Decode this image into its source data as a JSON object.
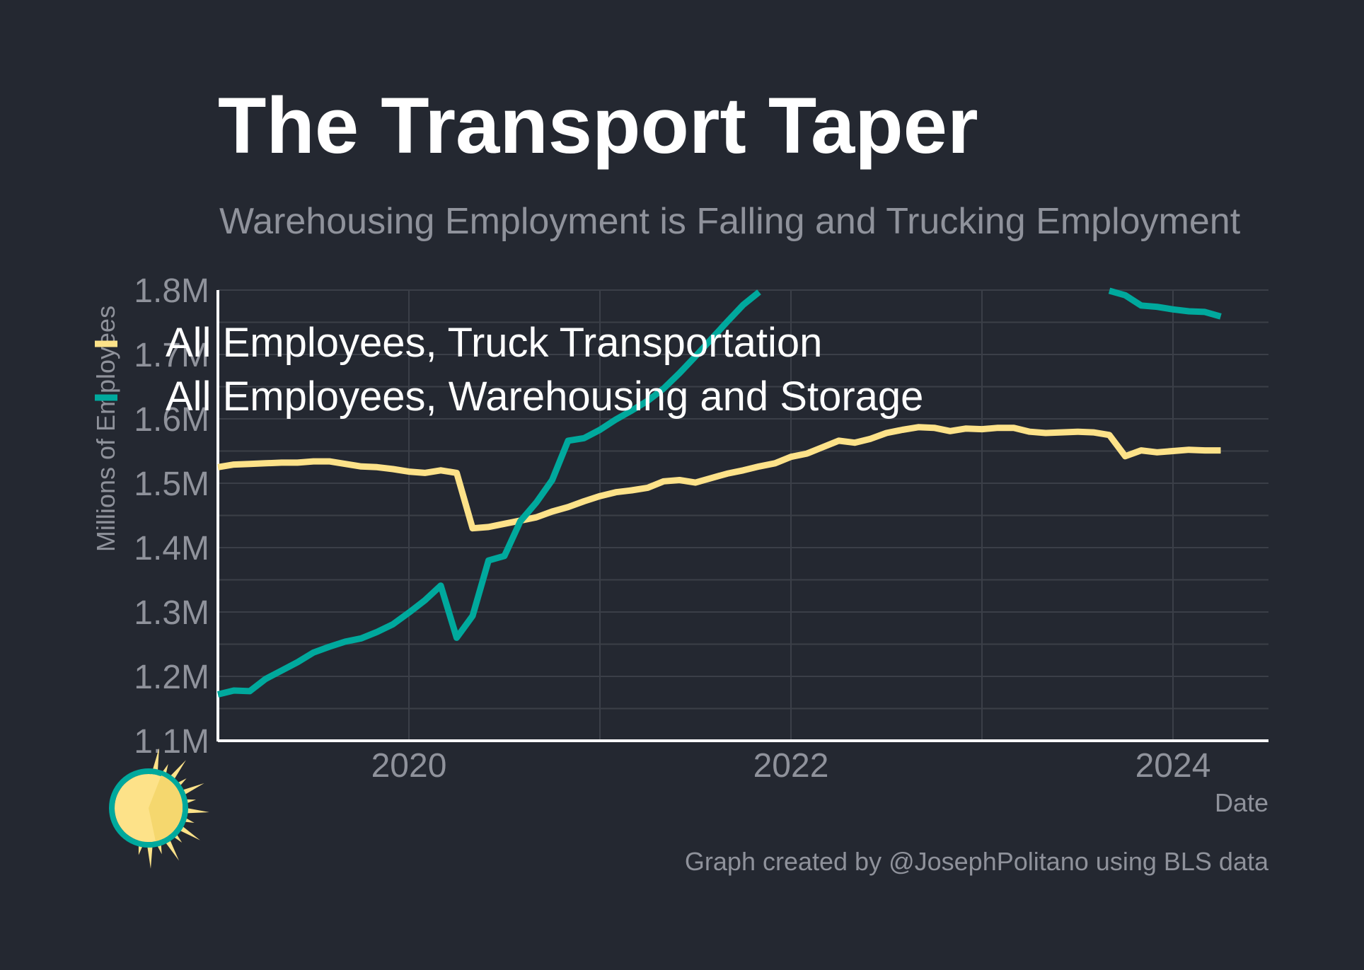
{
  "chart_data": {
    "type": "line",
    "title": "The Transport Taper",
    "subtitle": "Warehousing Employment is Falling and Trucking Employment",
    "xlabel": "Date",
    "ylabel": "Millions of Employees",
    "caption": "Graph created by @JosephPolitano using BLS data",
    "xlim": [
      "2019-01",
      "2024-07"
    ],
    "ylim": [
      1.1,
      1.8
    ],
    "x_ticks": [
      "2020",
      "2022",
      "2024"
    ],
    "y_ticks": [
      "1.1M",
      "1.2M",
      "1.3M",
      "1.4M",
      "1.5M",
      "1.6M",
      "1.7M",
      "1.8M"
    ],
    "grid": true,
    "legend_position": "top-left",
    "series": [
      {
        "name": "All Employees, Truck Transportation",
        "color": "#fde289",
        "points": [
          [
            "2019-01",
            1.525
          ],
          [
            "2019-02",
            1.529
          ],
          [
            "2019-03",
            1.53
          ],
          [
            "2019-04",
            1.531
          ],
          [
            "2019-05",
            1.532
          ],
          [
            "2019-06",
            1.532
          ],
          [
            "2019-07",
            1.534
          ],
          [
            "2019-08",
            1.534
          ],
          [
            "2019-09",
            1.53
          ],
          [
            "2019-10",
            1.526
          ],
          [
            "2019-11",
            1.525
          ],
          [
            "2019-12",
            1.522
          ],
          [
            "2020-01",
            1.518
          ],
          [
            "2020-02",
            1.516
          ],
          [
            "2020-03",
            1.52
          ],
          [
            "2020-04",
            1.516
          ],
          [
            "2020-05",
            1.43
          ],
          [
            "2020-06",
            1.432
          ],
          [
            "2020-07",
            1.437
          ],
          [
            "2020-08",
            1.442
          ],
          [
            "2020-09",
            1.447
          ],
          [
            "2020-10",
            1.456
          ],
          [
            "2020-11",
            1.463
          ],
          [
            "2020-12",
            1.472
          ],
          [
            "2021-01",
            1.48
          ],
          [
            "2021-02",
            1.486
          ],
          [
            "2021-03",
            1.489
          ],
          [
            "2021-04",
            1.493
          ],
          [
            "2021-05",
            1.503
          ],
          [
            "2021-06",
            1.505
          ],
          [
            "2021-07",
            1.501
          ],
          [
            "2021-08",
            1.508
          ],
          [
            "2021-09",
            1.515
          ],
          [
            "2021-10",
            1.52
          ],
          [
            "2021-11",
            1.526
          ],
          [
            "2021-12",
            1.531
          ],
          [
            "2022-01",
            1.541
          ],
          [
            "2022-02",
            1.546
          ],
          [
            "2022-03",
            1.556
          ],
          [
            "2022-04",
            1.566
          ],
          [
            "2022-05",
            1.563
          ],
          [
            "2022-06",
            1.569
          ],
          [
            "2022-07",
            1.578
          ],
          [
            "2022-08",
            1.583
          ],
          [
            "2022-09",
            1.587
          ],
          [
            "2022-10",
            1.586
          ],
          [
            "2022-11",
            1.581
          ],
          [
            "2022-12",
            1.585
          ],
          [
            "2023-01",
            1.584
          ],
          [
            "2023-02",
            1.586
          ],
          [
            "2023-03",
            1.586
          ],
          [
            "2023-04",
            1.58
          ],
          [
            "2023-05",
            1.578
          ],
          [
            "2023-06",
            1.579
          ],
          [
            "2023-07",
            1.58
          ],
          [
            "2023-08",
            1.579
          ],
          [
            "2023-09",
            1.575
          ],
          [
            "2023-10",
            1.542
          ],
          [
            "2023-11",
            1.551
          ],
          [
            "2023-12",
            1.548
          ],
          [
            "2024-01",
            1.55
          ],
          [
            "2024-02",
            1.552
          ],
          [
            "2024-03",
            1.551
          ],
          [
            "2024-04",
            1.551
          ]
        ]
      },
      {
        "name": "All Employees, Warehousing and Storage",
        "color": "#00a99d",
        "points": [
          [
            "2019-01",
            1.172
          ],
          [
            "2019-02",
            1.178
          ],
          [
            "2019-03",
            1.177
          ],
          [
            "2019-04",
            1.196
          ],
          [
            "2019-05",
            1.209
          ],
          [
            "2019-06",
            1.222
          ],
          [
            "2019-07",
            1.237
          ],
          [
            "2019-08",
            1.246
          ],
          [
            "2019-09",
            1.254
          ],
          [
            "2019-10",
            1.259
          ],
          [
            "2019-11",
            1.269
          ],
          [
            "2019-12",
            1.281
          ],
          [
            "2020-01",
            1.299
          ],
          [
            "2020-02",
            1.318
          ],
          [
            "2020-03",
            1.341
          ],
          [
            "2020-04",
            1.26
          ],
          [
            "2020-05",
            1.294
          ],
          [
            "2020-06",
            1.38
          ],
          [
            "2020-07",
            1.387
          ],
          [
            "2020-08",
            1.441
          ],
          [
            "2020-09",
            1.47
          ],
          [
            "2020-10",
            1.505
          ],
          [
            "2020-11",
            1.566
          ],
          [
            "2020-12",
            1.57
          ],
          [
            "2021-01",
            1.583
          ],
          [
            "2021-02",
            1.599
          ],
          [
            "2021-03",
            1.613
          ],
          [
            "2021-04",
            1.628
          ],
          [
            "2021-05",
            1.647
          ],
          [
            "2021-06",
            1.671
          ],
          [
            "2021-07",
            1.697
          ],
          [
            "2021-08",
            1.724
          ],
          [
            "2021-09",
            1.751
          ],
          [
            "2021-10",
            1.777
          ],
          [
            "2021-11",
            1.797
          ],
          [
            "2021-12",
            null
          ],
          [
            "2022-01",
            null
          ],
          [
            "2022-06",
            null
          ],
          [
            "2022-12",
            null
          ],
          [
            "2023-06",
            null
          ],
          [
            "2023-09",
            1.799
          ],
          [
            "2023-10",
            1.792
          ],
          [
            "2023-11",
            1.776
          ],
          [
            "2023-12",
            1.774
          ],
          [
            "2024-01",
            1.77
          ],
          [
            "2024-02",
            1.767
          ],
          [
            "2024-03",
            1.766
          ],
          [
            "2024-04",
            1.759
          ]
        ]
      }
    ]
  },
  "legend": {
    "items": [
      {
        "label": "All Employees, Truck Transportation",
        "color": "#fde289"
      },
      {
        "label": "All Employees, Warehousing and Storage",
        "color": "#00a99d"
      }
    ]
  },
  "logo": {
    "icon": "sun-logo-icon"
  }
}
